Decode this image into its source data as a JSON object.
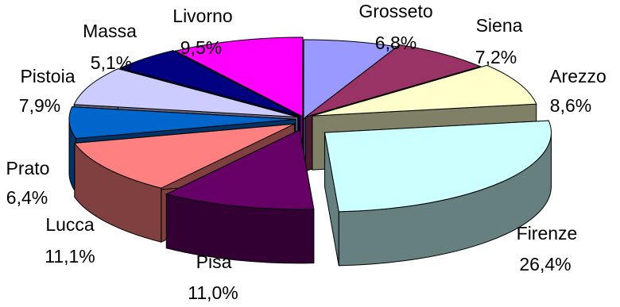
{
  "chart_data": {
    "type": "pie",
    "variant": "3d-exploded",
    "slices": [
      {
        "name": "Grosseto",
        "value": 6.8,
        "label": "6,8%",
        "color": "#9999ff",
        "side": "#4d4d80"
      },
      {
        "name": "Siena",
        "value": 7.2,
        "label": "7,2%",
        "color": "#993366",
        "side": "#4d1a33"
      },
      {
        "name": "Arezzo",
        "value": 8.6,
        "label": "8,6%",
        "color": "#ffffcc",
        "side": "#808066"
      },
      {
        "name": "Firenze",
        "value": 26.4,
        "label": "26,4%",
        "color": "#ccffff",
        "side": "#668080"
      },
      {
        "name": "Pisa",
        "value": 11.0,
        "label": "11,0%",
        "color": "#660066",
        "side": "#330033"
      },
      {
        "name": "Lucca",
        "value": 11.1,
        "label": "11,1%",
        "color": "#ff8080",
        "side": "#804040"
      },
      {
        "name": "Prato",
        "value": 6.4,
        "label": "6,4%",
        "color": "#0066cc",
        "side": "#003366"
      },
      {
        "name": "Pistoia",
        "value": 7.9,
        "label": "7,9%",
        "color": "#ccccff",
        "side": "#666680"
      },
      {
        "name": "Massa",
        "value": 5.1,
        "label": "5,1%",
        "color": "#000080",
        "side": "#000040"
      },
      {
        "name": "Livorno",
        "value": 9.5,
        "label": "9,5%",
        "color": "#ff00ff",
        "side": "#800080"
      }
    ],
    "legend": "none",
    "title": ""
  }
}
